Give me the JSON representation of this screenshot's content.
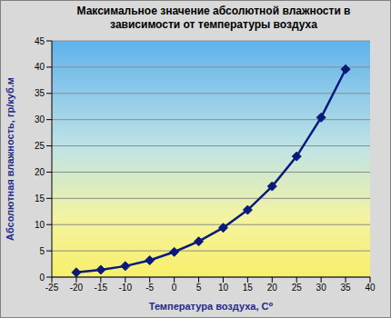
{
  "chart_data": {
    "type": "line",
    "title": "Максимальное значение абсолютной влажности в зависимости от температуры воздуха",
    "x_label": "Температура воздуха, С⁰",
    "y_label": "Абсолютная влажность, гр/куб.м",
    "x": [
      -20,
      -15,
      -10,
      -5,
      0,
      5,
      10,
      15,
      20,
      25,
      30,
      35
    ],
    "values": [
      0.9,
      1.4,
      2.1,
      3.2,
      4.8,
      6.8,
      9.4,
      12.8,
      17.3,
      23.0,
      30.4,
      39.6
    ],
    "color": "#0a1a7a",
    "marker": "diamond",
    "xlim": [
      -25,
      40
    ],
    "xticks": [
      -25,
      -20,
      -15,
      -10,
      -5,
      0,
      5,
      10,
      15,
      20,
      25,
      30,
      35,
      40
    ],
    "ylim": [
      0,
      45
    ],
    "yticks": [
      0,
      5,
      10,
      15,
      20,
      25,
      30,
      35,
      40,
      45
    ],
    "grid": true
  }
}
